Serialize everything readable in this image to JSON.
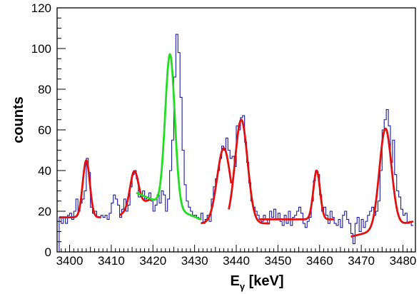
{
  "chart_data": {
    "type": "line",
    "title": "",
    "xlabel": "E",
    "xlabel_sub": "γ",
    "xlabel_unit": " [keV]",
    "ylabel": "counts",
    "xlim": [
      3397,
      3483
    ],
    "ylim": [
      0,
      120
    ],
    "x_ticks": [
      3400,
      3410,
      3420,
      3430,
      3440,
      3450,
      3460,
      3470,
      3480
    ],
    "y_ticks": [
      0,
      20,
      40,
      60,
      80,
      100,
      120
    ],
    "grid": false,
    "legend": "none",
    "colors": {
      "histogram": "#1a1aa0",
      "fit_red": "#e01010",
      "fit_green": "#22dd22",
      "axis": "#000000"
    },
    "histogram": {
      "name": "data",
      "bin_start": 3397,
      "bin_width": 0.5,
      "counts": [
        0,
        17,
        14,
        17,
        14,
        18,
        19,
        16,
        20,
        26,
        20,
        24,
        26,
        30,
        46,
        39,
        22,
        19,
        20,
        17,
        17,
        18,
        17,
        18,
        16,
        19,
        24,
        28,
        26,
        23,
        17,
        21,
        26,
        20,
        23,
        32,
        38,
        40,
        36,
        27,
        28,
        30,
        26,
        27,
        29,
        25,
        20,
        23,
        28,
        24,
        30,
        28,
        20,
        26,
        40,
        55,
        86,
        107,
        98,
        76,
        50,
        33,
        25,
        22,
        20,
        18,
        18,
        17,
        16,
        19,
        14,
        16,
        18,
        15,
        26,
        32,
        36,
        40,
        46,
        52,
        50,
        56,
        50,
        46,
        47,
        42,
        62,
        60,
        66,
        67,
        54,
        44,
        34,
        25,
        22,
        20,
        18,
        16,
        15,
        18,
        16,
        14,
        20,
        17,
        21,
        16,
        19,
        15,
        13,
        18,
        14,
        20,
        13,
        17,
        18,
        20,
        22,
        19,
        14,
        12,
        15,
        17,
        25,
        35,
        40,
        38,
        28,
        20,
        22,
        18,
        14,
        20,
        17,
        14,
        13,
        16,
        12,
        18,
        20,
        16,
        14,
        9,
        4,
        14,
        17,
        10,
        16,
        12,
        15,
        18,
        20,
        22,
        18,
        20,
        25,
        40,
        60,
        65,
        70,
        62,
        44,
        55,
        38,
        30,
        27,
        21,
        18,
        19,
        14,
        15,
        13
      ]
    },
    "fits": [
      {
        "name": "peak-3404",
        "color": "red",
        "x_range": [
          3397.5,
          3407.5
        ],
        "baseline": [
          17,
          17
        ],
        "gauss": [
          {
            "A": 28,
            "mu": 3404.0,
            "sigma": 0.85
          }
        ]
      },
      {
        "name": "peak-3415",
        "color": "red",
        "x_range": [
          3412.0,
          3419.5
        ],
        "baseline": [
          18,
          26
        ],
        "gauss": [
          {
            "A": 18,
            "mu": 3415.5,
            "sigma": 1.0
          }
        ]
      },
      {
        "name": "peak-3424",
        "color": "green",
        "x_range": [
          3416.0,
          3431.5
        ],
        "baseline": [
          29,
          16
        ],
        "gauss": [
          {
            "A": 75,
            "mu": 3424.1,
            "sigma": 1.15
          }
        ]
      },
      {
        "name": "peak-3437",
        "color": "red",
        "x_range": [
          3431.5,
          3438.8
        ],
        "baseline": [
          14,
          14
        ],
        "gauss": [
          {
            "A": 37,
            "mu": 3437.0,
            "sigma": 1.6
          }
        ]
      },
      {
        "name": "peak-3441",
        "color": "red",
        "x_range": [
          3438.2,
          3448.0
        ],
        "baseline": [
          14,
          14
        ],
        "gauss": [
          {
            "A": 51,
            "mu": 3441.2,
            "sigma": 1.5
          }
        ]
      },
      {
        "name": "peak-3459",
        "color": "red",
        "x_range": [
          3445.5,
          3463.5
        ],
        "baseline": [
          16,
          16
        ],
        "gauss": [
          {
            "A": 24,
            "mu": 3459.3,
            "sigma": 0.8
          }
        ]
      },
      {
        "name": "peak-3476",
        "color": "red",
        "x_range": [
          3467.5,
          3482.5
        ],
        "baseline": [
          7.5,
          15
        ],
        "gauss": [
          {
            "A": 49,
            "mu": 3475.8,
            "sigma": 1.45
          }
        ]
      }
    ]
  }
}
